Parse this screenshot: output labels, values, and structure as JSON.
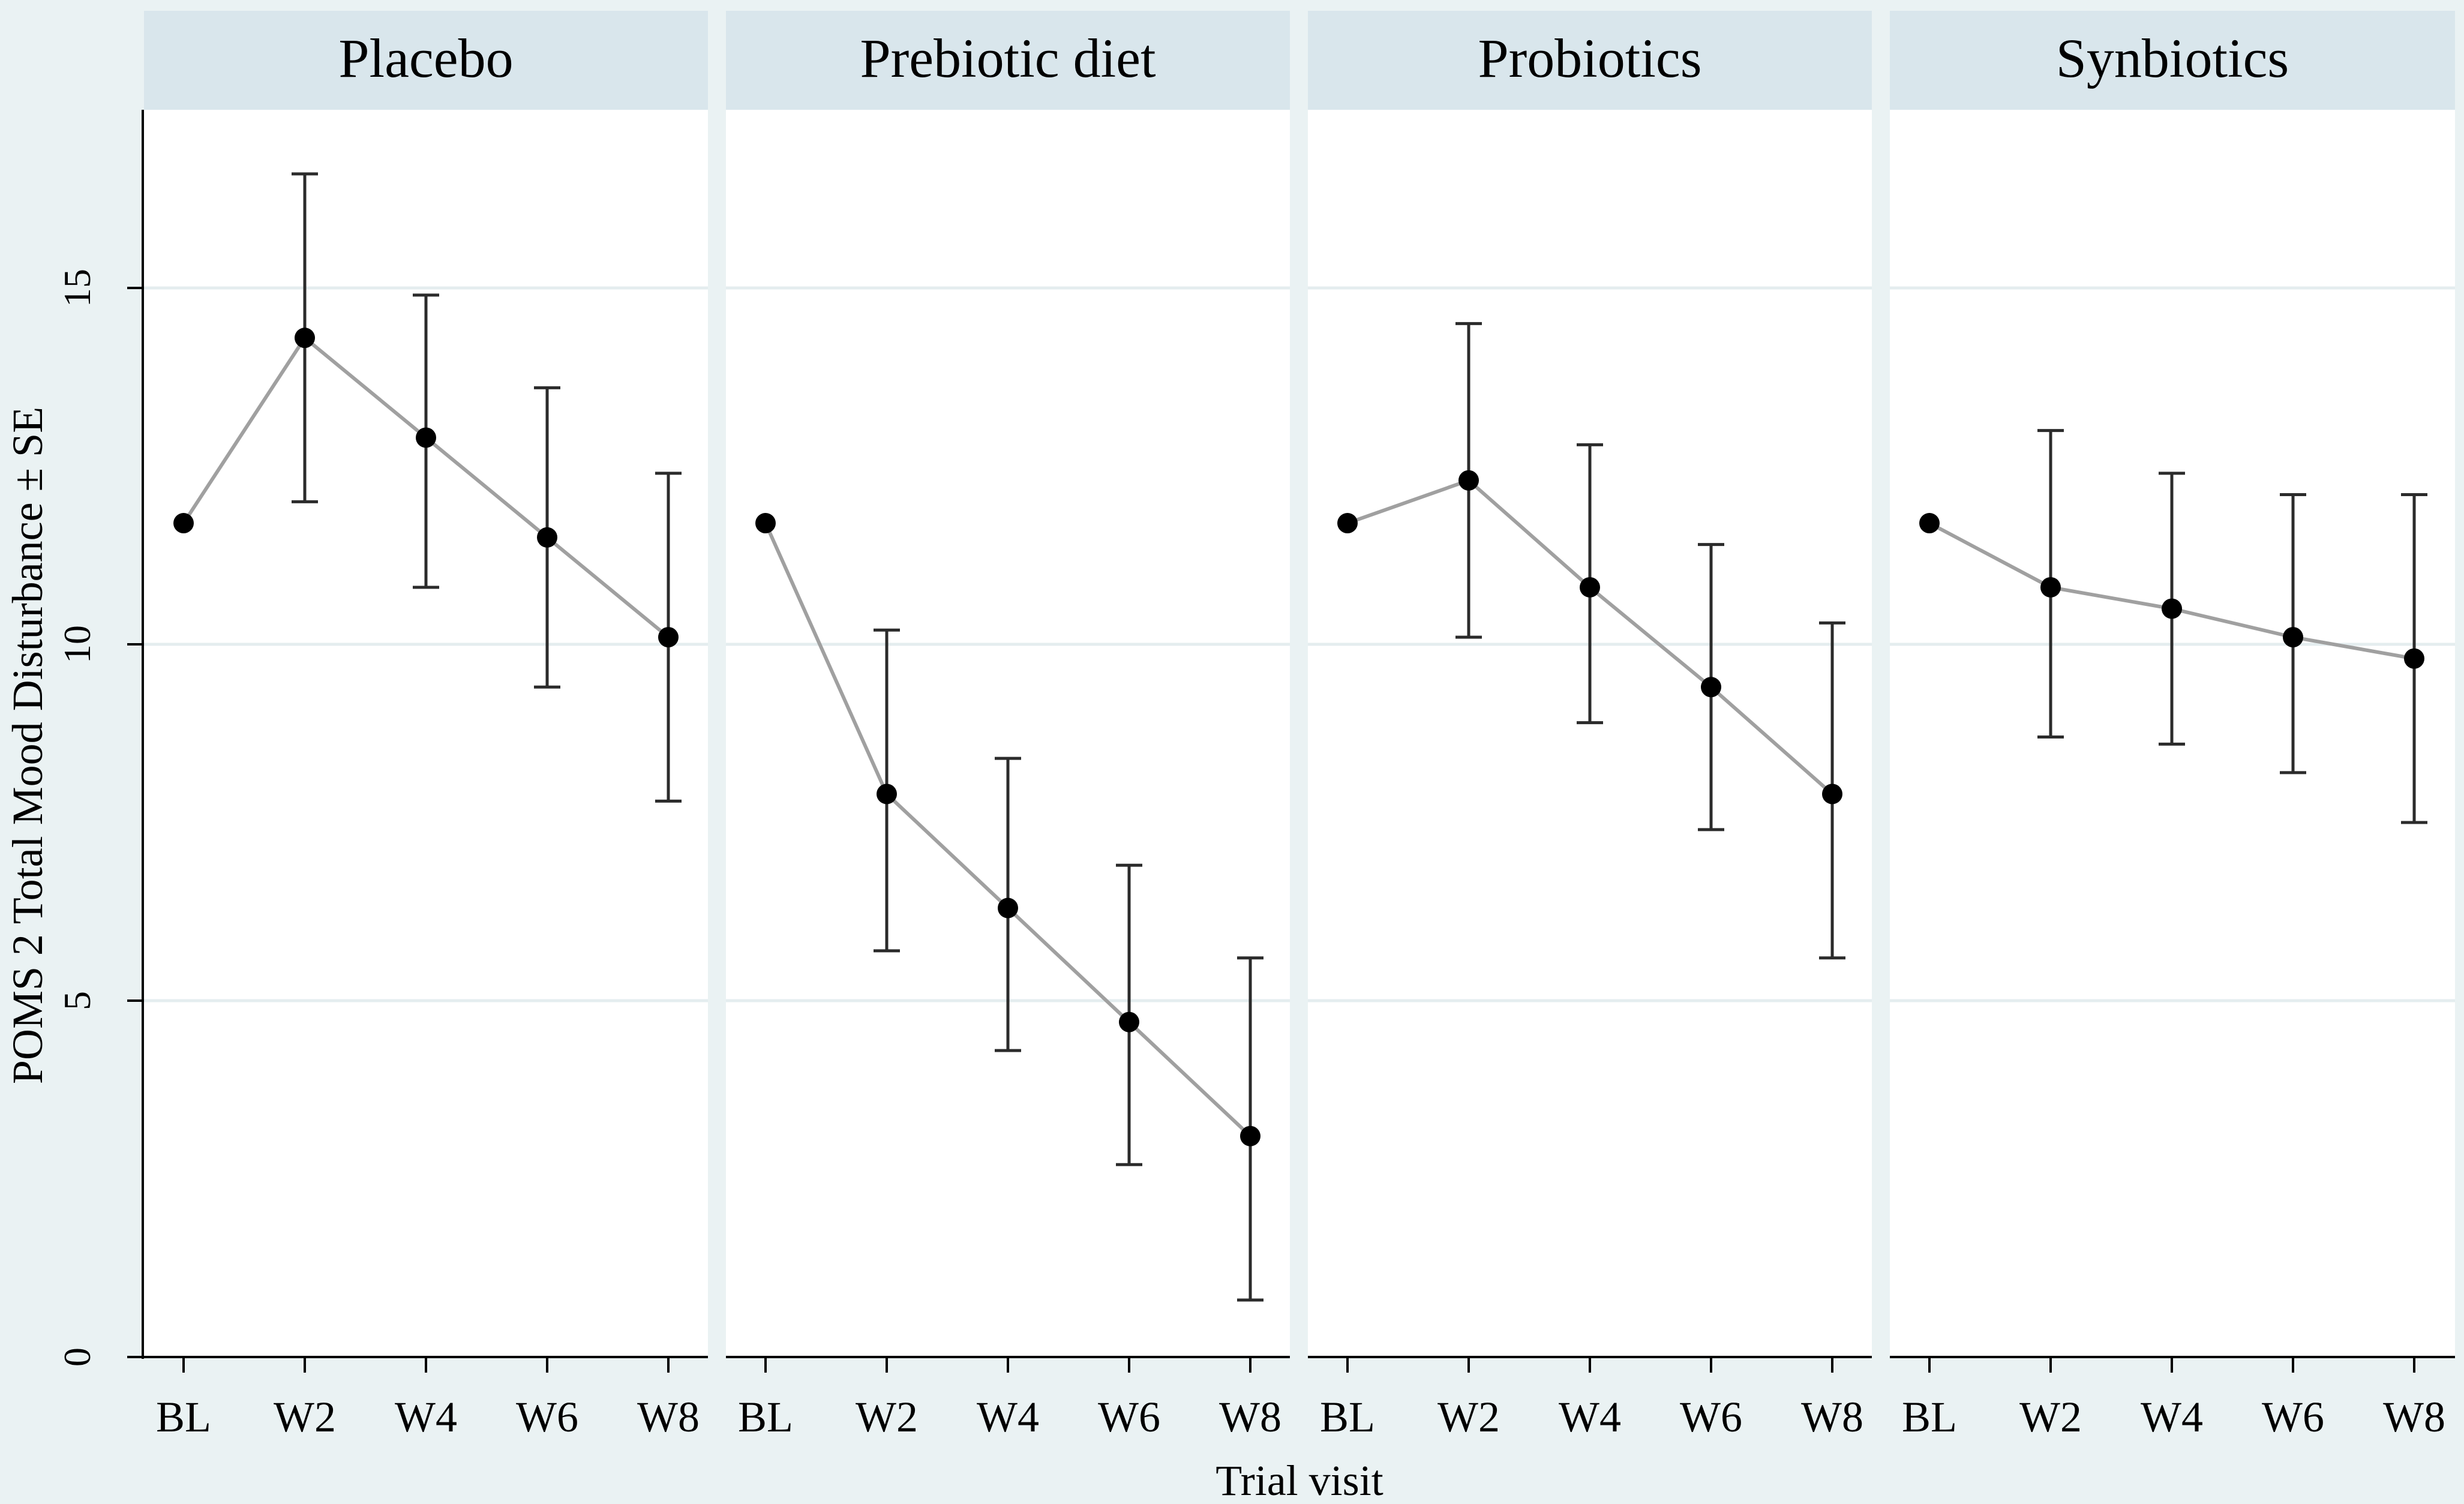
{
  "chart_data": {
    "type": "line",
    "layout": "faceted",
    "xlabel": "Trial visit",
    "ylabel": "POMS 2 Total Mood Disturbance ± SE",
    "ylim": [
      0,
      17.5
    ],
    "yticks": [
      0,
      5,
      10,
      15
    ],
    "ytick_labels": [
      "0",
      "5",
      "10",
      "15"
    ],
    "grid": true,
    "categories": [
      "BL",
      "W2",
      "W4",
      "W6",
      "W8"
    ],
    "panels": [
      {
        "title": "Placebo",
        "series": [
          {
            "name": "Placebo",
            "values": [
              11.7,
              14.3,
              12.9,
              11.5,
              10.1
            ],
            "error_low": [
              null,
              12.0,
              10.8,
              9.4,
              7.8
            ],
            "error_high": [
              null,
              16.6,
              14.9,
              13.6,
              12.4
            ]
          }
        ]
      },
      {
        "title": "Prebiotic diet",
        "series": [
          {
            "name": "Prebiotic diet",
            "values": [
              11.7,
              7.9,
              6.3,
              4.7,
              3.1
            ],
            "error_low": [
              null,
              5.7,
              4.3,
              2.7,
              0.8
            ],
            "error_high": [
              null,
              10.2,
              8.4,
              6.9,
              5.6
            ]
          }
        ]
      },
      {
        "title": "Probiotics",
        "series": [
          {
            "name": "Probiotics",
            "values": [
              11.7,
              12.3,
              10.8,
              9.4,
              7.9
            ],
            "error_low": [
              null,
              10.1,
              8.9,
              7.4,
              5.6
            ],
            "error_high": [
              null,
              14.5,
              12.8,
              11.4,
              10.3
            ]
          }
        ]
      },
      {
        "title": "Synbiotics",
        "series": [
          {
            "name": "Synbiotics",
            "values": [
              11.7,
              10.8,
              10.5,
              10.1,
              9.8
            ],
            "error_low": [
              null,
              8.7,
              8.6,
              8.2,
              7.5
            ],
            "error_high": [
              null,
              13.0,
              12.4,
              12.1,
              12.1
            ]
          }
        ]
      }
    ]
  },
  "colors": {
    "background": "#eaf2f3",
    "panel_background": "#ffffff",
    "strip_background": "#d9e6ec",
    "line": "#a0a0a0",
    "marker": "#000000",
    "error_bar": "#2b2b2b",
    "grid": "#e4edef"
  }
}
